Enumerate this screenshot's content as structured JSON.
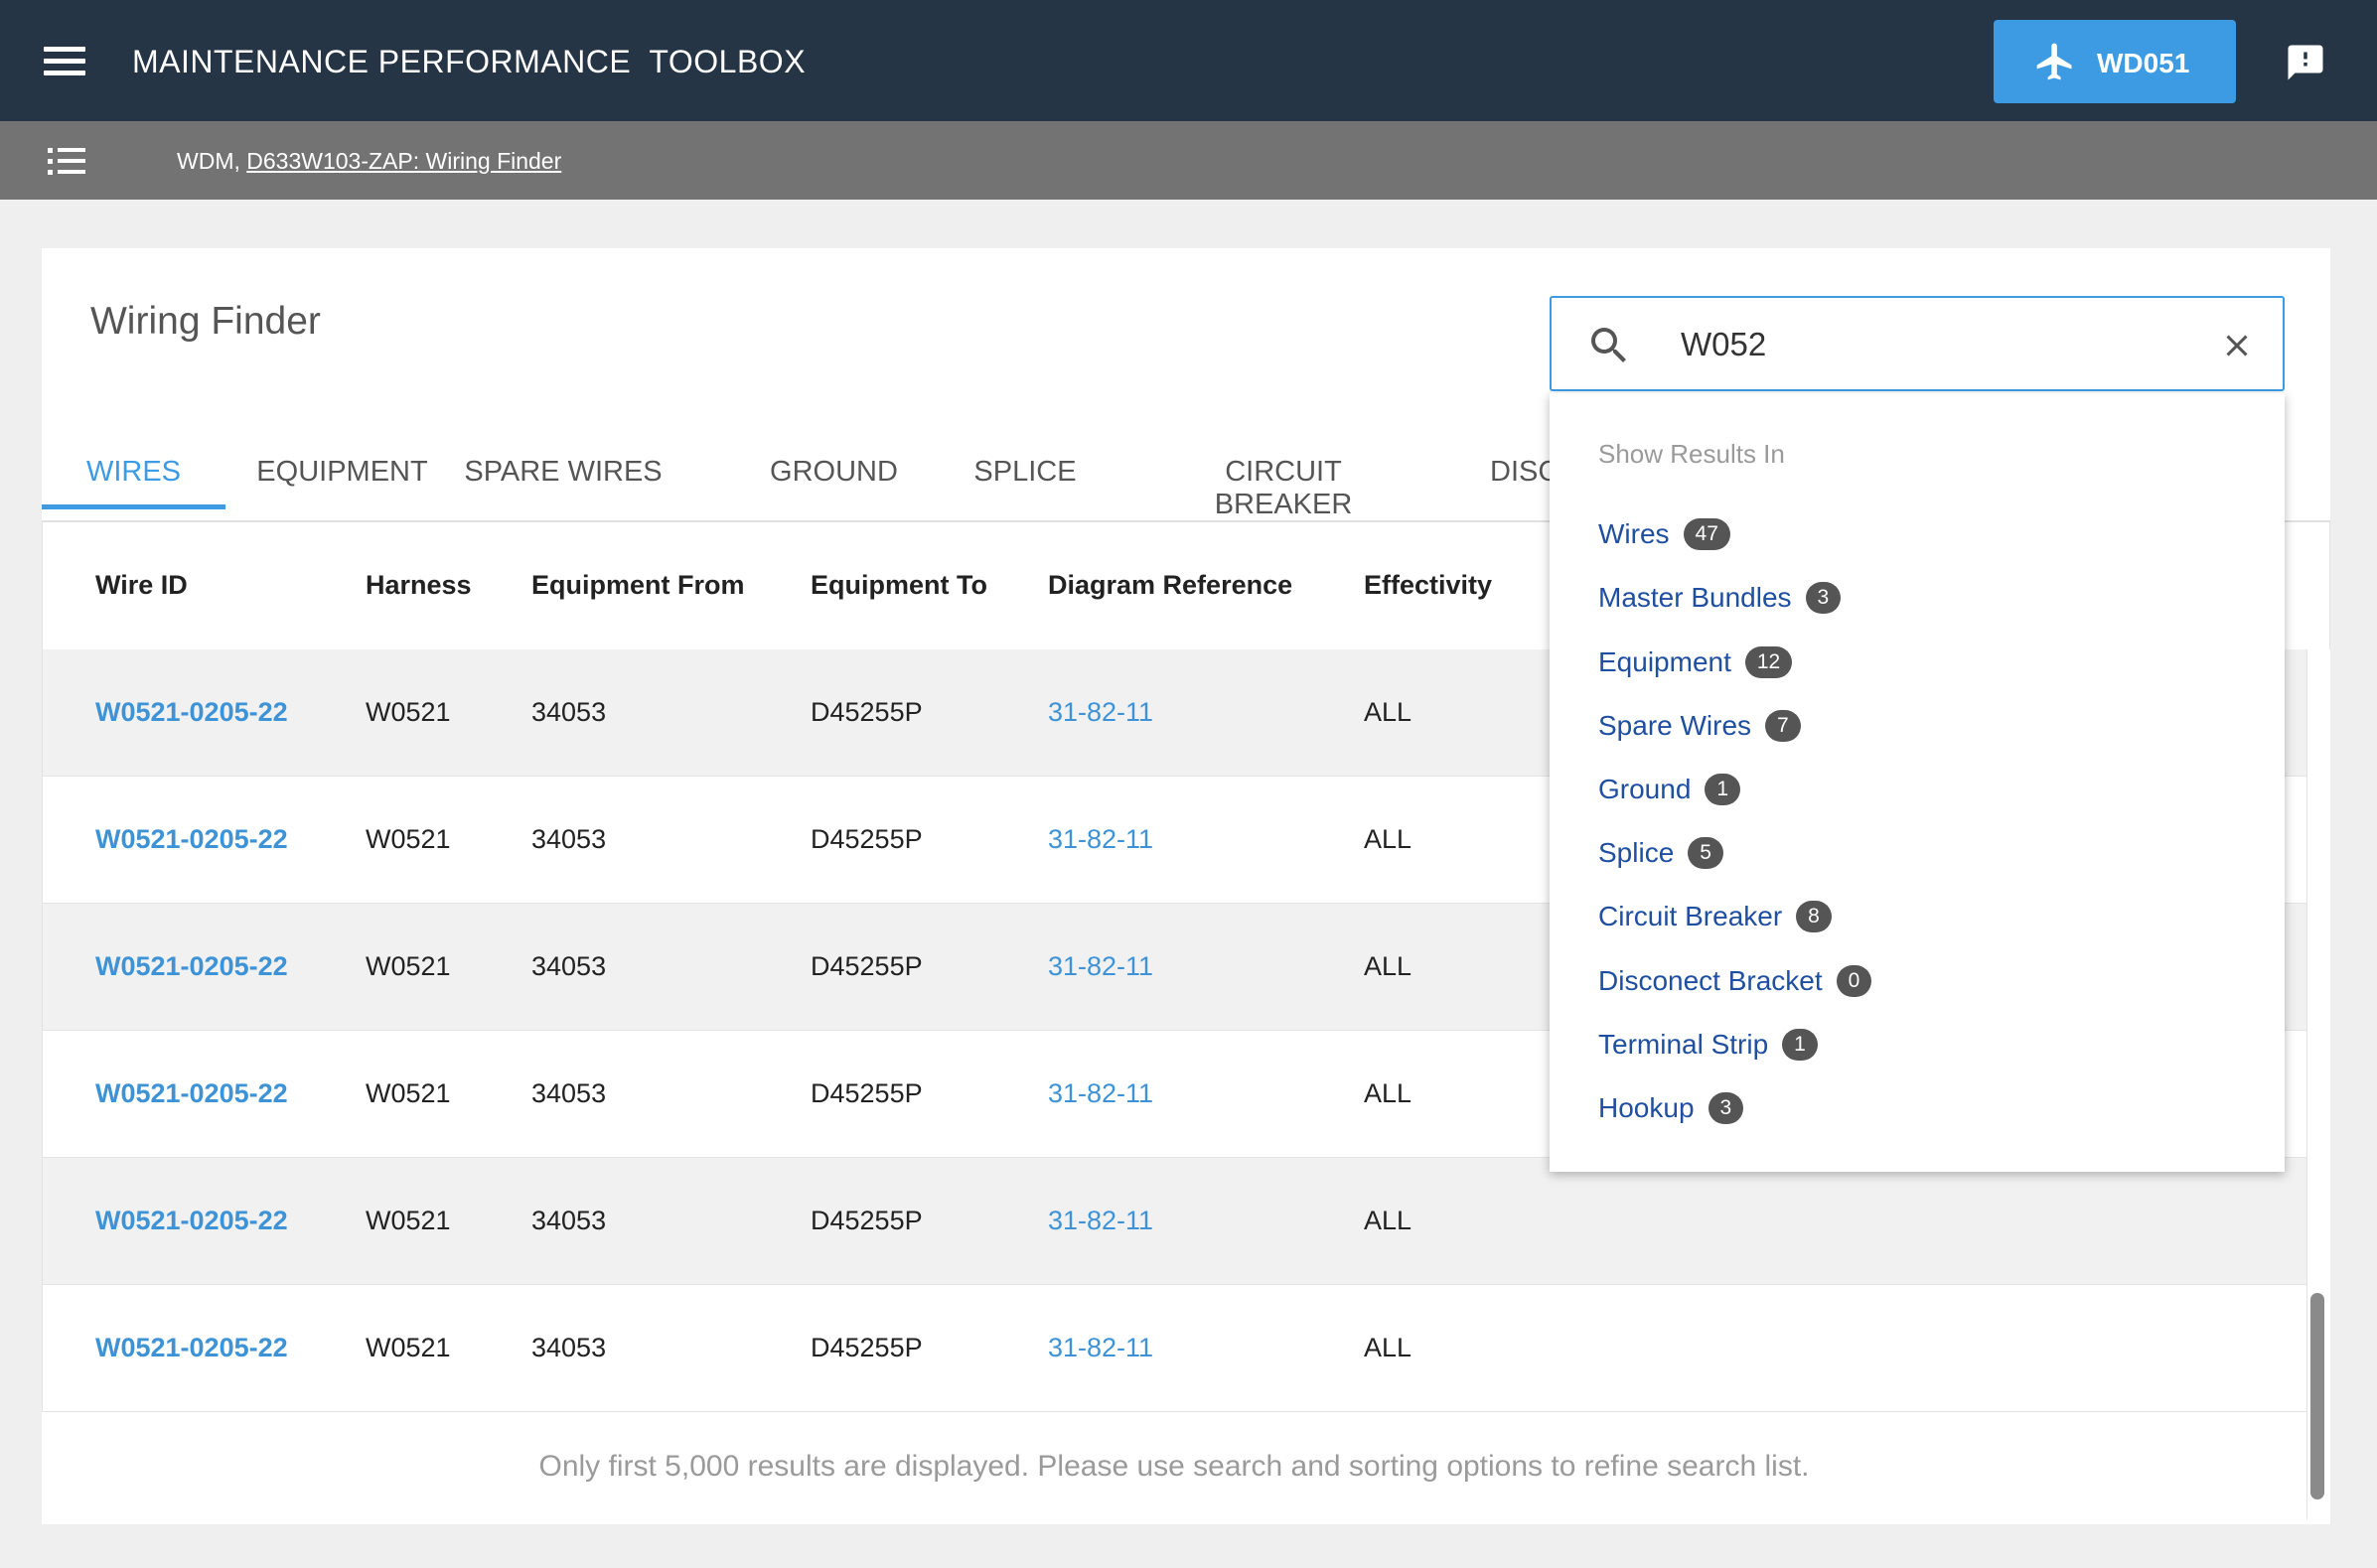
{
  "header": {
    "app_title": "MAINTENANCE PERFORMANCE  TOOLBOX",
    "aircraft_label": "WD051"
  },
  "breadcrumb": {
    "prefix": "WDM,",
    "link": "D633W103-ZAP: Wiring Finder"
  },
  "page": {
    "title": "Wiring Finder"
  },
  "tabs": [
    {
      "label": "WIRES",
      "active": true
    },
    {
      "label": "EQUIPMENT"
    },
    {
      "label": "SPARE WIRES"
    },
    {
      "label": "GROUND"
    },
    {
      "label": "SPLICE"
    },
    {
      "label": "CIRCUIT BREAKER"
    },
    {
      "label": "DISC"
    }
  ],
  "table": {
    "columns": [
      "Wire ID",
      "Harness",
      "Equipment From",
      "Equipment To",
      "Diagram Reference",
      "Effectivity"
    ],
    "rows": [
      {
        "wire_id": "W0521-0205-22",
        "harness": "W0521",
        "from": "34053",
        "to": "D45255P",
        "diagram": "31-82-11",
        "effectivity": "ALL"
      },
      {
        "wire_id": "W0521-0205-22",
        "harness": "W0521",
        "from": "34053",
        "to": "D45255P",
        "diagram": "31-82-11",
        "effectivity": "ALL"
      },
      {
        "wire_id": "W0521-0205-22",
        "harness": "W0521",
        "from": "34053",
        "to": "D45255P",
        "diagram": "31-82-11",
        "effectivity": "ALL"
      },
      {
        "wire_id": "W0521-0205-22",
        "harness": "W0521",
        "from": "34053",
        "to": "D45255P",
        "diagram": "31-82-11",
        "effectivity": "ALL"
      },
      {
        "wire_id": "W0521-0205-22",
        "harness": "W0521",
        "from": "34053",
        "to": "D45255P",
        "diagram": "31-82-11",
        "effectivity": "ALL"
      },
      {
        "wire_id": "W0521-0205-22",
        "harness": "W0521",
        "from": "34053",
        "to": "D45255P",
        "diagram": "31-82-11",
        "effectivity": "ALL"
      }
    ],
    "footnote": "Only first 5,000 results are displayed. Please use search and sorting options to refine search list."
  },
  "search": {
    "value": "W052",
    "placeholder": ""
  },
  "dropdown": {
    "heading": "Show Results In",
    "items": [
      {
        "label": "Wires",
        "count": "47"
      },
      {
        "label": "Master Bundles",
        "count": "3"
      },
      {
        "label": "Equipment",
        "count": "12"
      },
      {
        "label": "Spare Wires",
        "count": "7"
      },
      {
        "label": "Ground",
        "count": "1"
      },
      {
        "label": "Splice",
        "count": "5"
      },
      {
        "label": "Circuit Breaker",
        "count": "8"
      },
      {
        "label": "Disconect Bracket",
        "count": "0"
      },
      {
        "label": "Terminal Strip",
        "count": "1"
      },
      {
        "label": "Hookup",
        "count": "3"
      }
    ]
  },
  "colors": {
    "topbar": "#253545",
    "accent": "#3d9be3",
    "breadcrumb_bar": "#737373",
    "link": "#1f4fa0"
  },
  "icons": {
    "menu": "hamburger-menu-icon",
    "aircraft": "airplane-icon",
    "feedback": "feedback-alert-icon",
    "list": "list-icon",
    "search": "search-icon",
    "clear": "close-icon"
  }
}
